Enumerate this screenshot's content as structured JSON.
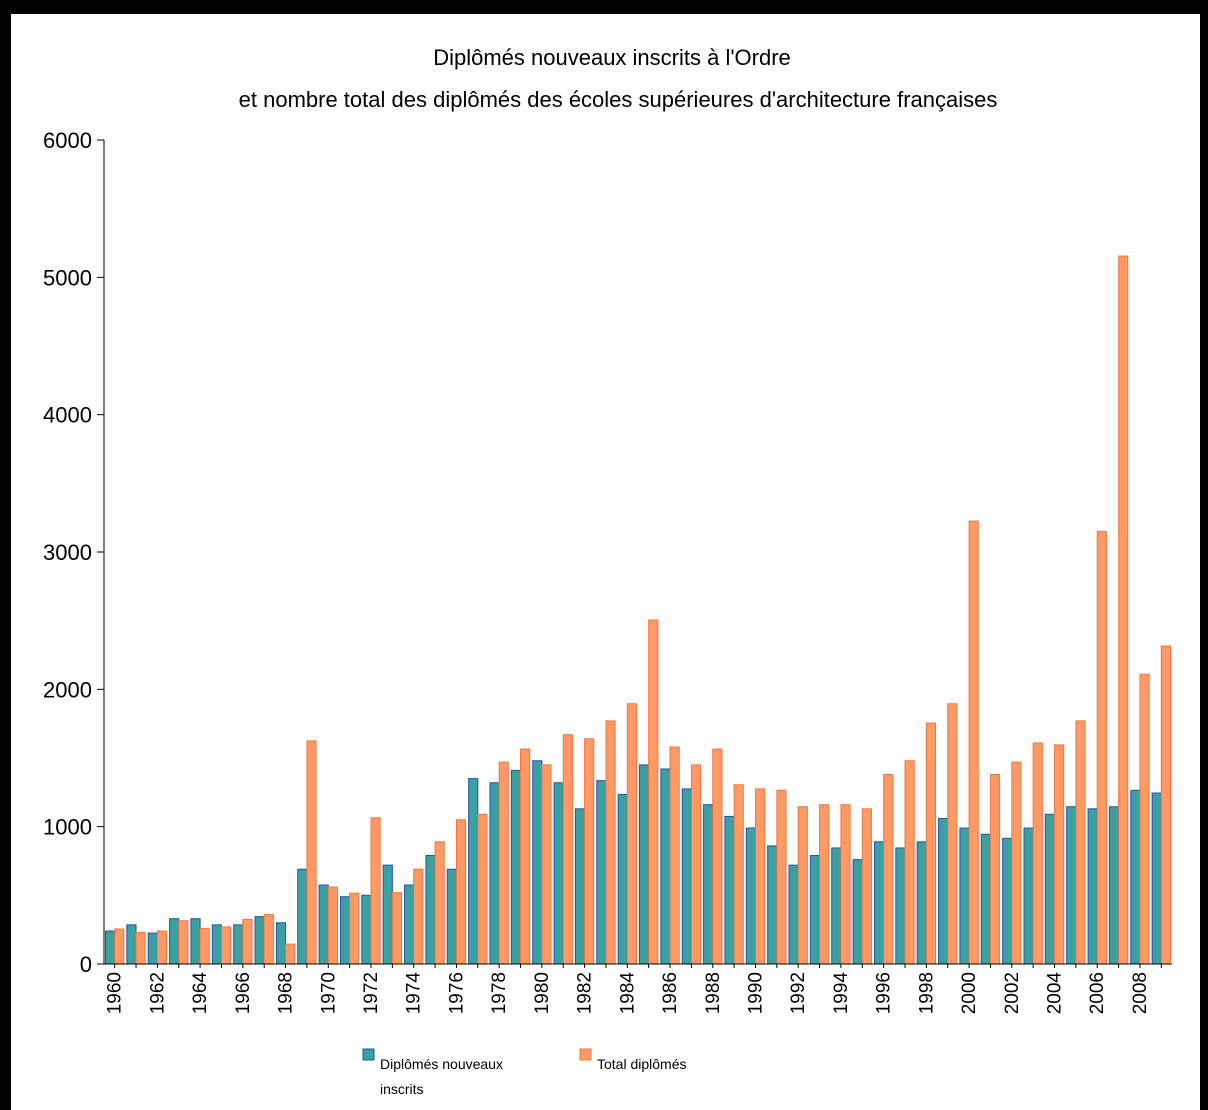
{
  "chart_data": {
    "type": "bar",
    "title": "Diplômés nouveaux inscrits à l'Ordre",
    "subtitle": "et nombre total des diplômés des écoles supérieures d'architecture françaises",
    "xlabel": "",
    "ylabel": "",
    "ylim": [
      0,
      6000
    ],
    "yticks": [
      "0",
      "1000",
      "2000",
      "3000",
      "4000",
      "5000",
      "6000"
    ],
    "categories": [
      "1960",
      "1961",
      "1962",
      "1963",
      "1964",
      "1965",
      "1966",
      "1967",
      "1968",
      "1969",
      "1970",
      "1971",
      "1972",
      "1973",
      "1974",
      "1975",
      "1976",
      "1977",
      "1978",
      "1979",
      "1980",
      "1981",
      "1982",
      "1983",
      "1984",
      "1985",
      "1986",
      "1987",
      "1988",
      "1989",
      "1990",
      "1991",
      "1992",
      "1993",
      "1994",
      "1995",
      "1996",
      "1997",
      "1998",
      "1999",
      "2000",
      "2001",
      "2002",
      "2003",
      "2004",
      "2005",
      "2006",
      "2007",
      "2008",
      "2009"
    ],
    "xtick_labels": [
      "1960",
      "",
      "1962",
      "",
      "1964",
      "",
      "1966",
      "",
      "1968",
      "",
      "1970",
      "",
      "1972",
      "",
      "1974",
      "",
      "1976",
      "",
      "1978",
      "",
      "1980",
      "",
      "1982",
      "",
      "1984",
      "",
      "1986",
      "",
      "1988",
      "",
      "1990",
      "",
      "1992",
      "",
      "1994",
      "",
      "1996",
      "",
      "1998",
      "",
      "2000",
      "",
      "2002",
      "",
      "2004",
      "",
      "2006",
      "",
      "2008",
      ""
    ],
    "series": [
      {
        "name": "Diplômés nouveaux inscrits",
        "color": "#3aa0a0",
        "border": "#2850b4",
        "values": [
          240,
          285,
          225,
          330,
          330,
          285,
          285,
          345,
          300,
          690,
          575,
          490,
          500,
          720,
          575,
          790,
          690,
          1350,
          1320,
          1410,
          1480,
          1320,
          1130,
          1335,
          1235,
          1450,
          1420,
          1275,
          1160,
          1075,
          990,
          860,
          720,
          790,
          845,
          760,
          890,
          845,
          890,
          1060,
          990,
          945,
          915,
          990,
          1090,
          1145,
          1130,
          1145,
          1265,
          1245
        ]
      },
      {
        "name": "Total diplômés",
        "color": "#ff9a66",
        "border": "#f07840",
        "values": [
          255,
          230,
          240,
          315,
          260,
          270,
          325,
          360,
          145,
          1625,
          560,
          515,
          1065,
          520,
          690,
          890,
          1050,
          1090,
          1470,
          1565,
          1450,
          1670,
          1640,
          1770,
          1895,
          2505,
          1580,
          1450,
          1565,
          1305,
          1275,
          1265,
          1145,
          1160,
          1160,
          1130,
          1380,
          1480,
          1755,
          1895,
          3225,
          1380,
          1470,
          1610,
          1595,
          1770,
          3150,
          5155,
          2110,
          2315
        ]
      }
    ],
    "legend": {
      "position": "bottom",
      "items": [
        {
          "label_line1": "Diplômés nouveaux",
          "label_line2": "inscrits",
          "color": "#3aa0a0"
        },
        {
          "label_line1": "Total diplômés",
          "label_line2": "",
          "color": "#ff9a66"
        }
      ]
    },
    "grid": false
  }
}
